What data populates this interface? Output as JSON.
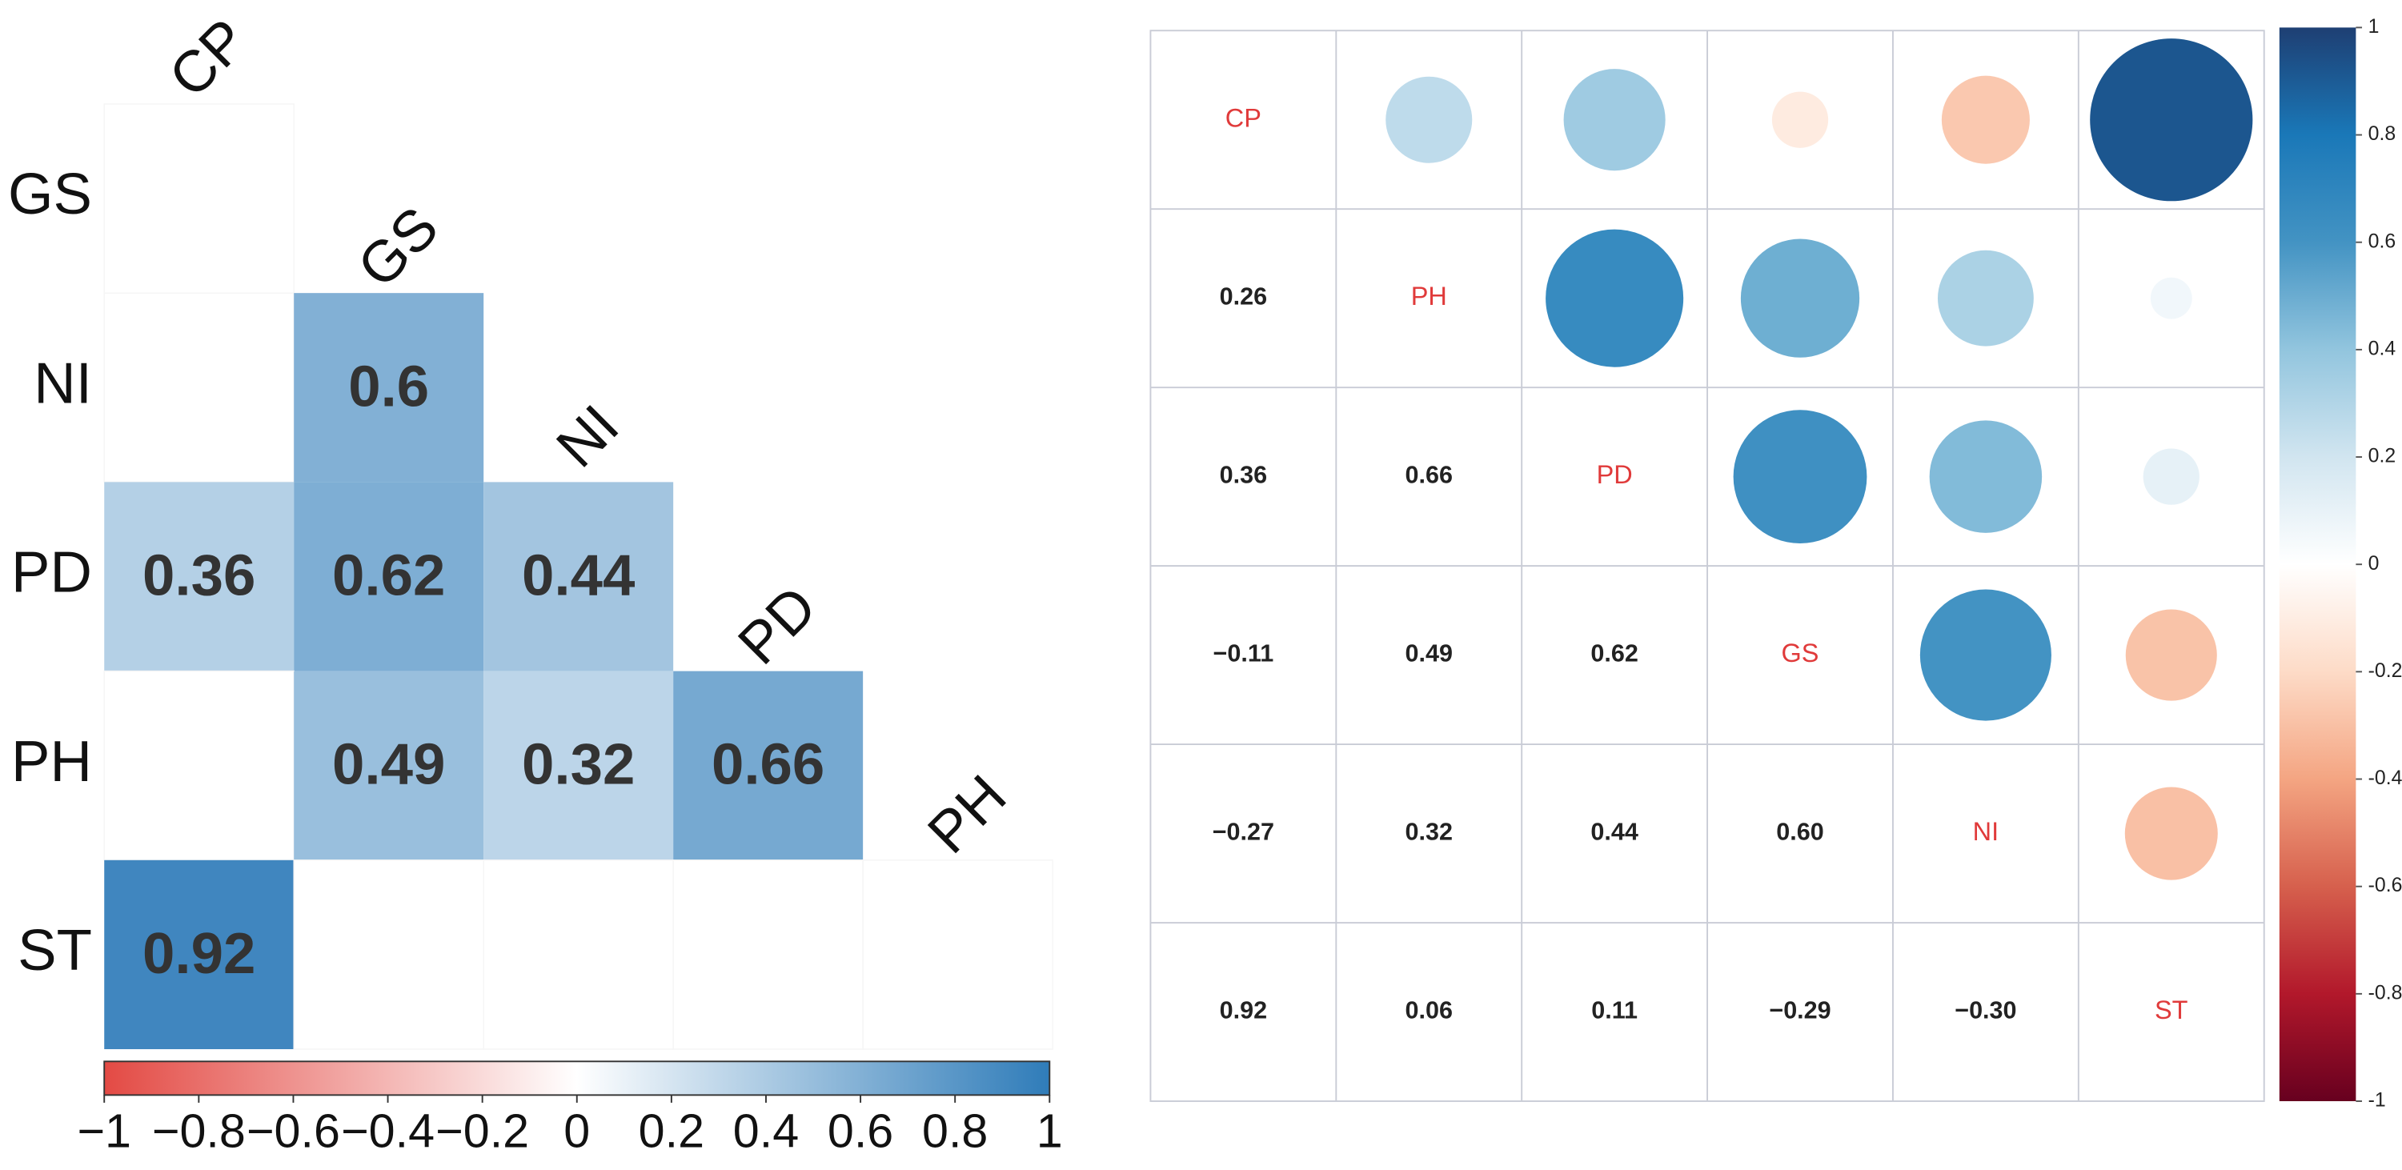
{
  "chart_data": [
    {
      "type": "heatmap",
      "variables": [
        "CP",
        "GS",
        "NI",
        "PD",
        "PH",
        "ST"
      ],
      "values": [
        [
          null
        ],
        [
          null,
          0.6
        ],
        [
          0.36,
          0.62,
          0.44
        ],
        [
          null,
          0.49,
          0.32,
          0.66
        ],
        [
          0.92,
          null,
          null,
          null,
          null
        ]
      ],
      "colors": [
        "#e34a44",
        "#ffffff",
        "#2f7cb9"
      ],
      "colorbar_lim": [
        -1,
        1
      ],
      "colorbar_ticks": [
        {
          "value": -1,
          "label": "−1"
        },
        {
          "value": -0.8,
          "label": "−0.8"
        },
        {
          "value": -0.6,
          "label": "−0.6"
        },
        {
          "value": -0.4,
          "label": "−0.4"
        },
        {
          "value": -0.2,
          "label": "−0.2"
        },
        0,
        0.2,
        0.4,
        0.6,
        0.8,
        1
      ]
    },
    {
      "type": "corrplot",
      "variables": [
        "CP",
        "PH",
        "PD",
        "GS",
        "NI",
        "ST"
      ],
      "values": [
        [
          0.26
        ],
        [
          0.36,
          0.66
        ],
        [
          -0.11,
          0.49,
          0.62
        ],
        [
          -0.27,
          0.32,
          0.44,
          0.6
        ],
        [
          0.92,
          0.06,
          0.11,
          -0.29,
          -0.3
        ]
      ],
      "value_labels": [
        [
          "0.26"
        ],
        [
          "0.36",
          "0.66"
        ],
        [
          "−0.11",
          "0.49",
          "0.62"
        ],
        [
          "−0.27",
          "0.32",
          "0.44",
          "0.60"
        ],
        [
          "0.92",
          "0.06",
          "0.11",
          "−0.29",
          "−0.30"
        ]
      ],
      "colors": [
        "#67001f",
        "#b2182b",
        "#d6604d",
        "#f4a582",
        "#fddbc7",
        "#ffffff",
        "#d1e5f0",
        "#92c5de",
        "#4393c3",
        "#1a78b8",
        "#1e3f73"
      ],
      "colorbar_lim": [
        -1,
        1
      ],
      "colorbar_ticks": [
        -1,
        -0.8,
        -0.6,
        -0.4,
        -0.2,
        0,
        0.2,
        0.4,
        0.6,
        0.8,
        1
      ]
    }
  ]
}
